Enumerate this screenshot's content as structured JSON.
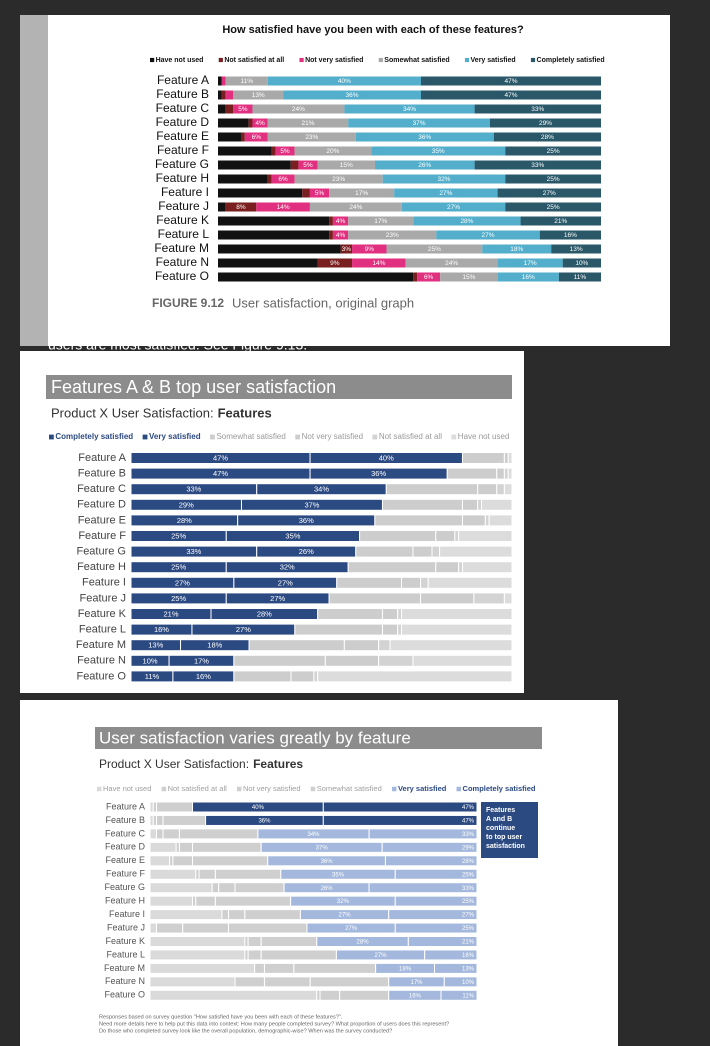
{
  "page_fragment": "users are most satisfied. See Figure 9.13.",
  "chart_data": [
    {
      "type": "bar",
      "orientation": "horizontal",
      "stacked": true,
      "title": "How satisfied have you been with each of these features?",
      "figure_label": "FIGURE 9.12",
      "caption": "User satisfaction, original graph",
      "categories": [
        "Feature A",
        "Feature B",
        "Feature C",
        "Feature D",
        "Feature E",
        "Feature F",
        "Feature G",
        "Feature H",
        "Feature I",
        "Feature J",
        "Feature K",
        "Feature L",
        "Feature M",
        "Feature N",
        "Feature O"
      ],
      "xlim": [
        0,
        100
      ],
      "legend_text_color": "#111111",
      "series": [
        {
          "name": "Have not used",
          "color": "#111111",
          "values": [
            1,
            1,
            2,
            8,
            6,
            14,
            19,
            13,
            22,
            2,
            29,
            29,
            32,
            26,
            51
          ]
        },
        {
          "name": "Not satisfied at all",
          "color": "#7a1f1f",
          "values": [
            0,
            1,
            2,
            1,
            1,
            1,
            2,
            1,
            2,
            8,
            1,
            1,
            3,
            9,
            1
          ],
          "value_labels": [
            null,
            null,
            null,
            null,
            null,
            null,
            null,
            null,
            null,
            "8%",
            null,
            null,
            "3%",
            "9%",
            null
          ]
        },
        {
          "name": "Not very satisfied",
          "color": "#e0307f",
          "values": [
            1,
            2,
            5,
            4,
            6,
            5,
            5,
            6,
            5,
            14,
            4,
            4,
            9,
            14,
            6
          ],
          "value_labels": [
            null,
            null,
            "5%",
            "4%",
            "6%",
            "5%",
            "5%",
            "6%",
            "5%",
            "14%",
            "4%",
            "4%",
            "9%",
            "14%",
            "6%"
          ]
        },
        {
          "name": "Somewhat satisfied",
          "color": "#a9a9a9",
          "values": [
            11,
            13,
            24,
            21,
            23,
            20,
            15,
            23,
            17,
            24,
            17,
            23,
            25,
            24,
            15
          ],
          "value_labels": [
            "11%",
            "13%",
            "24%",
            "21%",
            "23%",
            "20%",
            "15%",
            "23%",
            "17%",
            "24%",
            "17%",
            "23%",
            "25%",
            "24%",
            "15%"
          ]
        },
        {
          "name": "Very satisfied",
          "color": "#52aecb",
          "values": [
            40,
            36,
            34,
            37,
            36,
            35,
            26,
            32,
            27,
            27,
            28,
            27,
            18,
            17,
            16
          ],
          "value_labels": [
            "40%",
            "36%",
            "34%",
            "37%",
            "36%",
            "35%",
            "26%",
            "32%",
            "27%",
            "27%",
            "28%",
            "27%",
            "18%",
            "17%",
            "16%"
          ]
        },
        {
          "name": "Completely satisfied",
          "color": "#2a5868",
          "values": [
            47,
            47,
            33,
            29,
            28,
            25,
            33,
            25,
            27,
            25,
            21,
            16,
            13,
            10,
            11
          ],
          "value_labels": [
            "47%",
            "47%",
            "33%",
            "29%",
            "28%",
            "25%",
            "33%",
            "25%",
            "27%",
            "25%",
            "21%",
            "16%",
            "13%",
            "10%",
            "11%"
          ]
        }
      ]
    },
    {
      "type": "bar",
      "orientation": "horizontal",
      "stacked": true,
      "title": "Features A & B top user satisfaction",
      "subtitle": "Product X User Satisfaction:",
      "subtitle_emphasis": "Features",
      "categories": [
        "Feature A",
        "Feature B",
        "Feature C",
        "Feature D",
        "Feature E",
        "Feature F",
        "Feature G",
        "Feature H",
        "Feature I",
        "Feature J",
        "Feature K",
        "Feature L",
        "Feature M",
        "Feature N",
        "Feature O"
      ],
      "xlim": [
        0,
        100
      ],
      "segment_stroke": "#ffffff",
      "series": [
        {
          "name": "Completely satisfied",
          "color": "#2c4a82",
          "legend_text_color": "#2c4a82",
          "legend_bold": true,
          "values": [
            47,
            47,
            33,
            29,
            28,
            25,
            33,
            25,
            27,
            25,
            21,
            16,
            13,
            10,
            11
          ],
          "value_labels": [
            "47%",
            "47%",
            "33%",
            "29%",
            "28%",
            "25%",
            "33%",
            "25%",
            "27%",
            "25%",
            "21%",
            "16%",
            "13%",
            "10%",
            "11%"
          ]
        },
        {
          "name": "Very satisfied",
          "color": "#2c4a82",
          "legend_text_color": "#2c4a82",
          "legend_bold": true,
          "values": [
            40,
            36,
            34,
            37,
            36,
            35,
            26,
            32,
            27,
            27,
            28,
            27,
            18,
            17,
            16
          ],
          "value_labels": [
            "40%",
            "36%",
            "34%",
            "37%",
            "36%",
            "35%",
            "26%",
            "32%",
            "27%",
            "27%",
            "28%",
            "27%",
            "18%",
            "17%",
            "16%"
          ]
        },
        {
          "name": "Somewhat satisfied",
          "color": "#cdcdcd",
          "legend_text_color": "#9a9a9a",
          "values": [
            11,
            13,
            24,
            21,
            23,
            20,
            15,
            23,
            17,
            24,
            17,
            23,
            25,
            24,
            15
          ]
        },
        {
          "name": "Not very satisfied",
          "color": "#cdcdcd",
          "legend_text_color": "#9a9a9a",
          "values": [
            1,
            2,
            5,
            4,
            6,
            5,
            5,
            6,
            5,
            14,
            4,
            4,
            9,
            14,
            6
          ]
        },
        {
          "name": "Not satisfied at all",
          "color": "#d3d3d3",
          "legend_text_color": "#9a9a9a",
          "values": [
            0,
            1,
            2,
            1,
            1,
            1,
            2,
            1,
            2,
            8,
            1,
            1,
            3,
            9,
            1
          ]
        },
        {
          "name": "Have not used",
          "color": "#dcdcdc",
          "legend_text_color": "#9a9a9a",
          "values": [
            1,
            1,
            2,
            8,
            6,
            14,
            19,
            13,
            22,
            2,
            29,
            29,
            32,
            26,
            51
          ]
        }
      ]
    },
    {
      "type": "bar",
      "orientation": "horizontal",
      "stacked": true,
      "title": "User satisfaction varies greatly by feature",
      "subtitle": "Product X User Satisfaction:",
      "subtitle_emphasis": "Features",
      "categories": [
        "Feature A",
        "Feature B",
        "Feature C",
        "Feature D",
        "Feature E",
        "Feature F",
        "Feature G",
        "Feature H",
        "Feature I",
        "Feature J",
        "Feature K",
        "Feature L",
        "Feature M",
        "Feature N",
        "Feature O"
      ],
      "xlim": [
        0,
        100
      ],
      "segment_stroke": "#ffffff",
      "annotation_lines": [
        "Features",
        "A and B",
        "continue",
        "to top user",
        "satisfaction"
      ],
      "annotation_color": "#2c4a82",
      "footnote_lines": [
        "Responses based on survey question \"How satisfied have you been with each of these features?\".",
        "Need more details here to help put this data into context: How many people completed survey? What proportion of users does this represent?",
        "Do those who completed survey look like the overall population, demographic-wise? When was the survey conducted?"
      ],
      "series": [
        {
          "name": "Have not used",
          "color": "#dadada",
          "legend_text_color": "#a0a0a0",
          "values": [
            1,
            1,
            2,
            8,
            6,
            14,
            19,
            13,
            22,
            2,
            29,
            29,
            32,
            26,
            51
          ]
        },
        {
          "name": "Not satisfied at all",
          "color": "#cfcfcf",
          "legend_text_color": "#a0a0a0",
          "values": [
            0,
            1,
            2,
            1,
            1,
            1,
            2,
            1,
            2,
            8,
            1,
            1,
            3,
            9,
            1
          ]
        },
        {
          "name": "Not very satisfied",
          "color": "#cfcfcf",
          "legend_text_color": "#a0a0a0",
          "values": [
            1,
            2,
            5,
            4,
            6,
            5,
            5,
            6,
            5,
            14,
            4,
            4,
            9,
            14,
            6
          ]
        },
        {
          "name": "Somewhat satisfied",
          "color": "#cfcfcf",
          "legend_text_color": "#a0a0a0",
          "values": [
            11,
            13,
            24,
            21,
            23,
            20,
            15,
            23,
            17,
            24,
            17,
            23,
            25,
            24,
            15
          ]
        },
        {
          "name": "Very satisfied",
          "color": "#a3b8dc",
          "legend_text_color": "#2c4a82",
          "legend_bold": true,
          "colors": [
            "#2c4a82",
            "#2c4a82",
            "#a3b8dc",
            "#a3b8dc",
            "#a3b8dc",
            "#a3b8dc",
            "#a3b8dc",
            "#a3b8dc",
            "#a3b8dc",
            "#a3b8dc",
            "#a3b8dc",
            "#a3b8dc",
            "#a3b8dc",
            "#a3b8dc",
            "#a3b8dc"
          ],
          "values": [
            40,
            36,
            34,
            37,
            36,
            35,
            26,
            32,
            27,
            27,
            28,
            27,
            18,
            17,
            16
          ],
          "value_labels": [
            "40%",
            "36%",
            "34%",
            "37%",
            "36%",
            "35%",
            "26%",
            "32%",
            "27%",
            "27%",
            "28%",
            "27%",
            "18%",
            "17%",
            "16%"
          ]
        },
        {
          "name": "Completely satisfied",
          "color": "#a3b8dc",
          "legend_text_color": "#2c4a82",
          "legend_bold": true,
          "label_align": "end",
          "colors": [
            "#2c4a82",
            "#2c4a82",
            "#a3b8dc",
            "#a3b8dc",
            "#a3b8dc",
            "#a3b8dc",
            "#a3b8dc",
            "#a3b8dc",
            "#a3b8dc",
            "#a3b8dc",
            "#a3b8dc",
            "#a3b8dc",
            "#a3b8dc",
            "#a3b8dc",
            "#a3b8dc"
          ],
          "values": [
            47,
            47,
            33,
            29,
            28,
            25,
            33,
            25,
            27,
            25,
            21,
            16,
            13,
            10,
            11
          ],
          "value_labels": [
            "47%",
            "47%",
            "33%",
            "29%",
            "28%",
            "25%",
            "33%",
            "25%",
            "27%",
            "25%",
            "21%",
            "16%",
            "13%",
            "10%",
            "11%"
          ]
        }
      ]
    }
  ]
}
